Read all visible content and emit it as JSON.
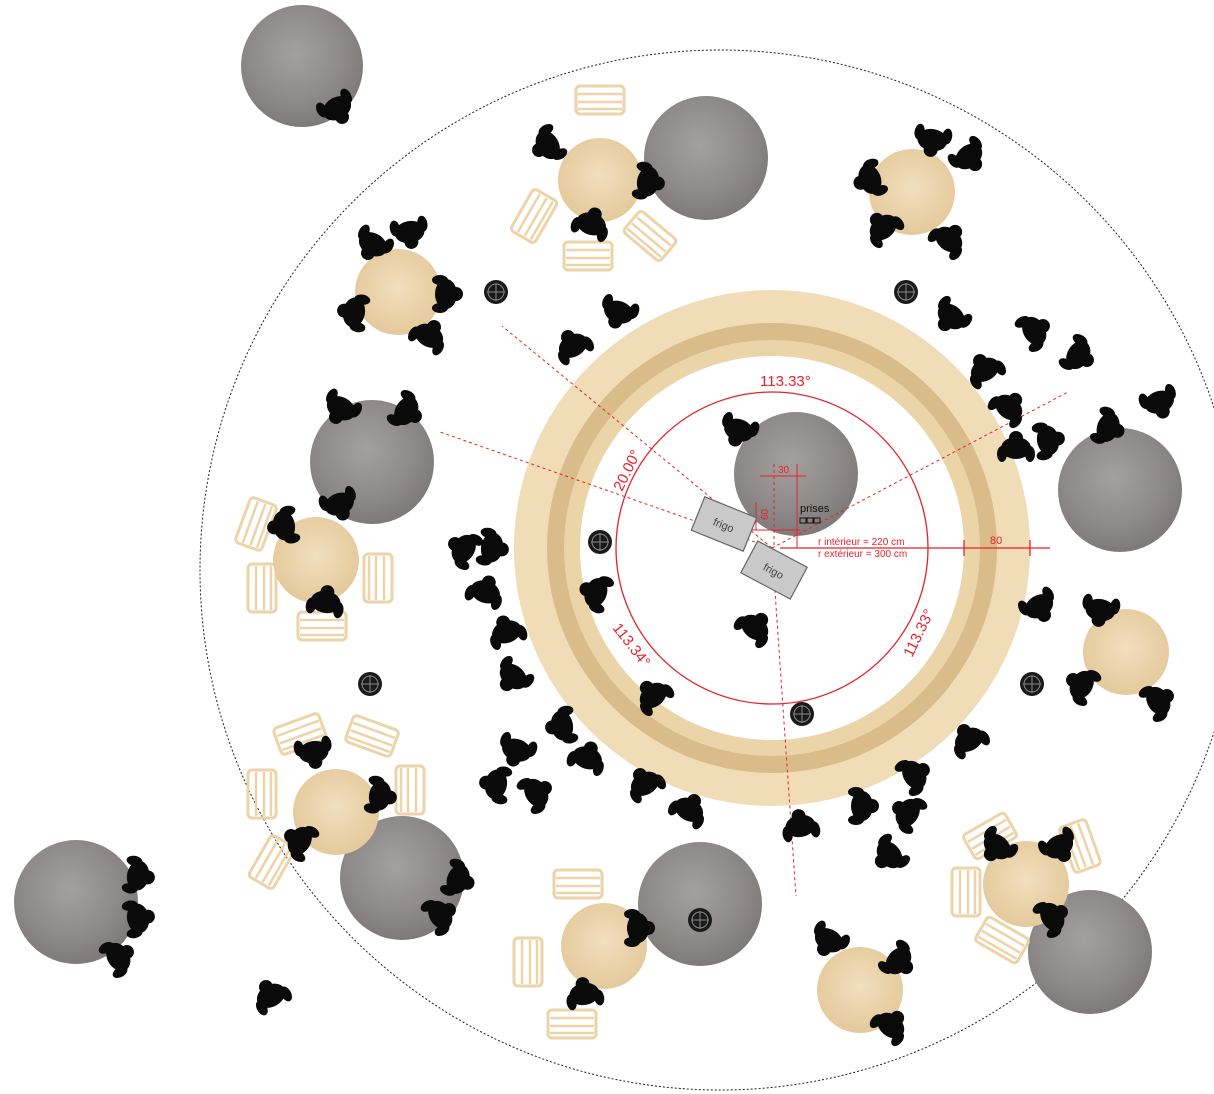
{
  "angles": {
    "top": "113.33°",
    "left": "20.00°",
    "bottom_left": "113.34°",
    "right": "113.33°"
  },
  "dimensions": {
    "width_30": "30",
    "height_60": "60",
    "offset_80": "80",
    "r_interieur": "r intérieur = 220 cm",
    "r_exterieur": "r extérieur = 300 cm"
  },
  "labels": {
    "prises": "prises",
    "frigo_1": "frigo",
    "frigo_2": "frigo"
  },
  "colors": {
    "dimension_red": "#e8212a",
    "wood": "#e9d3ab",
    "wood_dark": "#d9bb86",
    "concrete": "#8c8888",
    "person": "#0a0a0a",
    "fridge": "#c9c9c9"
  },
  "icons": {
    "person": "person-topview-icon",
    "chair": "chair-icon",
    "socket": "socket-icon",
    "floor_drain": "floor-drain-icon"
  }
}
